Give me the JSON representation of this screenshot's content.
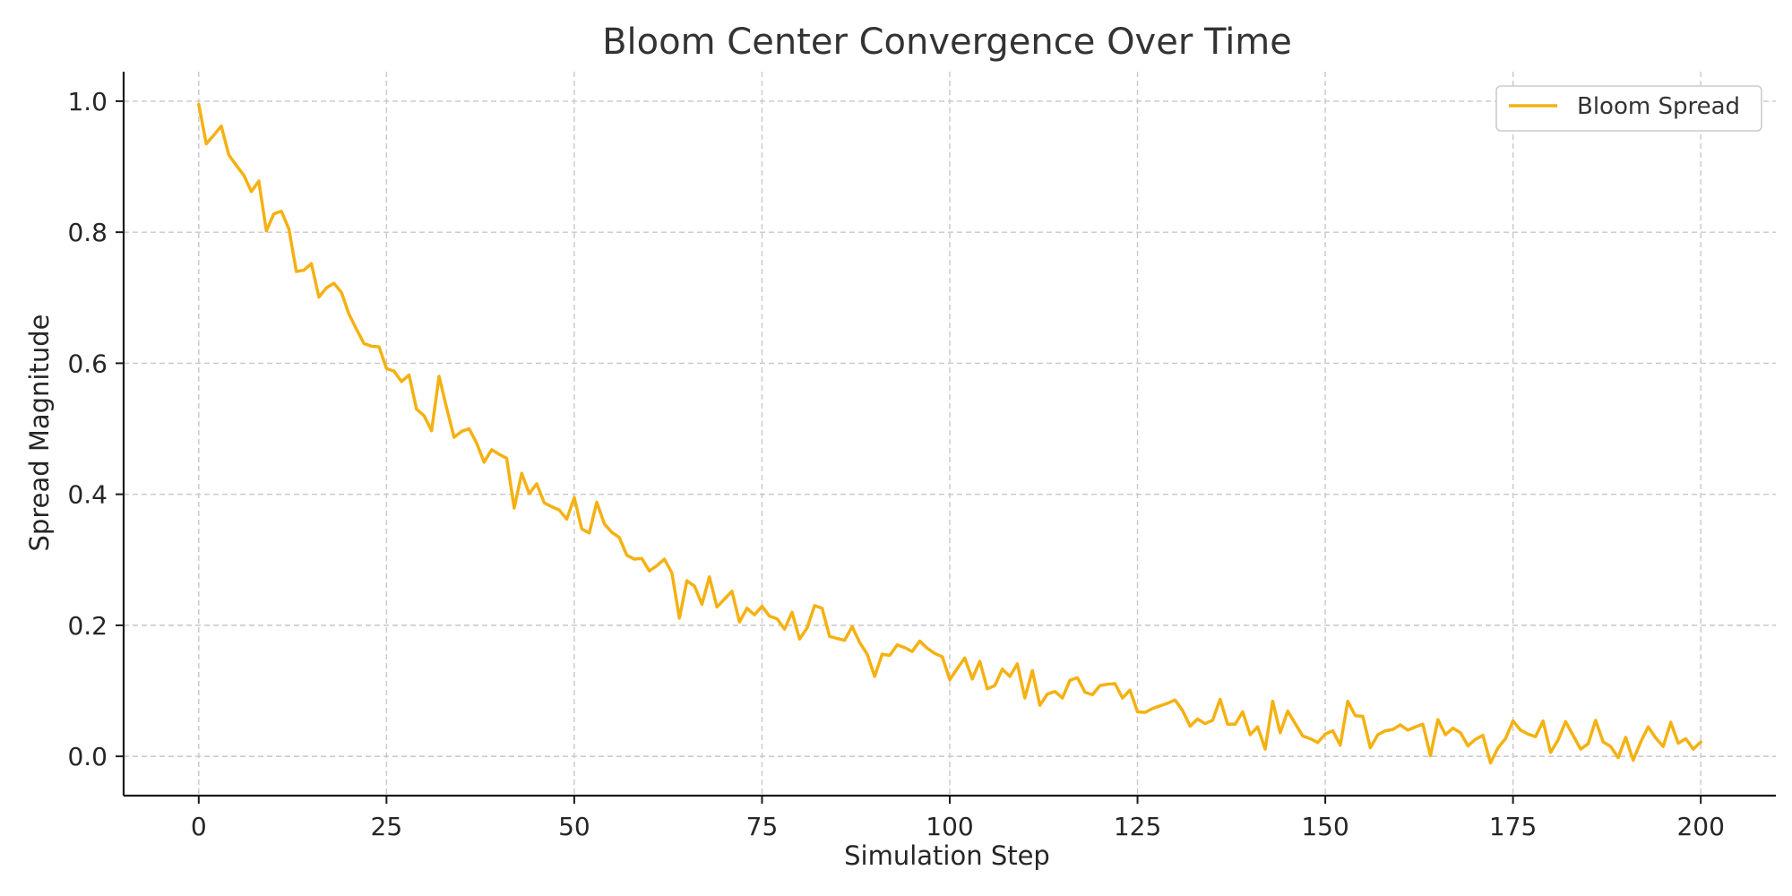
{
  "chart_data": {
    "type": "line",
    "title": "Bloom Center Convergence Over Time",
    "xlabel": "Simulation Step",
    "ylabel": "Spread Magnitude",
    "xlim": [
      -10,
      210
    ],
    "ylim": [
      -0.06,
      1.045
    ],
    "xticks": [
      0,
      25,
      50,
      75,
      100,
      125,
      150,
      175,
      200
    ],
    "xtick_labels": [
      "0",
      "25",
      "50",
      "75",
      "100",
      "125",
      "150",
      "175",
      "200"
    ],
    "yticks": [
      0.0,
      0.2,
      0.4,
      0.6,
      0.8,
      1.0
    ],
    "ytick_labels": [
      "0.0",
      "0.2",
      "0.4",
      "0.6",
      "0.8",
      "1.0"
    ],
    "grid": true,
    "legend": "top-right",
    "colors": {
      "line": "#f5b111",
      "text": "#333333",
      "grid": "#c8c8c8"
    },
    "series": [
      {
        "name": "Bloom Spread",
        "x_start": 0,
        "x_step": 1,
        "values": [
          0.995,
          0.935,
          0.948,
          0.962,
          0.918,
          0.902,
          0.887,
          0.862,
          0.878,
          0.802,
          0.828,
          0.832,
          0.805,
          0.74,
          0.742,
          0.752,
          0.701,
          0.715,
          0.722,
          0.708,
          0.675,
          0.652,
          0.63,
          0.626,
          0.625,
          0.592,
          0.588,
          0.572,
          0.582,
          0.53,
          0.52,
          0.497,
          0.58,
          0.532,
          0.487,
          0.496,
          0.5,
          0.478,
          0.449,
          0.468,
          0.461,
          0.455,
          0.379,
          0.432,
          0.401,
          0.416,
          0.387,
          0.381,
          0.376,
          0.362,
          0.395,
          0.347,
          0.341,
          0.388,
          0.355,
          0.342,
          0.334,
          0.307,
          0.301,
          0.302,
          0.283,
          0.291,
          0.301,
          0.28,
          0.211,
          0.268,
          0.26,
          0.232,
          0.274,
          0.228,
          0.24,
          0.252,
          0.205,
          0.226,
          0.216,
          0.229,
          0.214,
          0.21,
          0.194,
          0.22,
          0.179,
          0.196,
          0.23,
          0.226,
          0.183,
          0.18,
          0.177,
          0.198,
          0.174,
          0.156,
          0.122,
          0.156,
          0.154,
          0.17,
          0.166,
          0.16,
          0.176,
          0.165,
          0.157,
          0.152,
          0.117,
          0.134,
          0.15,
          0.118,
          0.145,
          0.103,
          0.108,
          0.133,
          0.122,
          0.141,
          0.089,
          0.131,
          0.078,
          0.095,
          0.099,
          0.089,
          0.116,
          0.12,
          0.098,
          0.094,
          0.108,
          0.11,
          0.111,
          0.089,
          0.101,
          0.068,
          0.067,
          0.073,
          0.077,
          0.081,
          0.086,
          0.07,
          0.046,
          0.057,
          0.05,
          0.055,
          0.087,
          0.049,
          0.049,
          0.068,
          0.033,
          0.045,
          0.011,
          0.084,
          0.036,
          0.069,
          0.05,
          0.031,
          0.027,
          0.021,
          0.034,
          0.039,
          0.017,
          0.084,
          0.062,
          0.061,
          0.013,
          0.033,
          0.039,
          0.041,
          0.048,
          0.04,
          0.045,
          0.049,
          0.001,
          0.056,
          0.033,
          0.043,
          0.036,
          0.016,
          0.026,
          0.032,
          -0.01,
          0.013,
          0.027,
          0.054,
          0.04,
          0.034,
          0.03,
          0.054,
          0.006,
          0.025,
          0.053,
          0.032,
          0.011,
          0.019,
          0.055,
          0.022,
          0.015,
          -0.002,
          0.029,
          -0.006,
          0.022,
          0.045,
          0.028,
          0.015,
          0.052,
          0.02,
          0.027,
          0.011,
          0.022
        ]
      }
    ]
  }
}
